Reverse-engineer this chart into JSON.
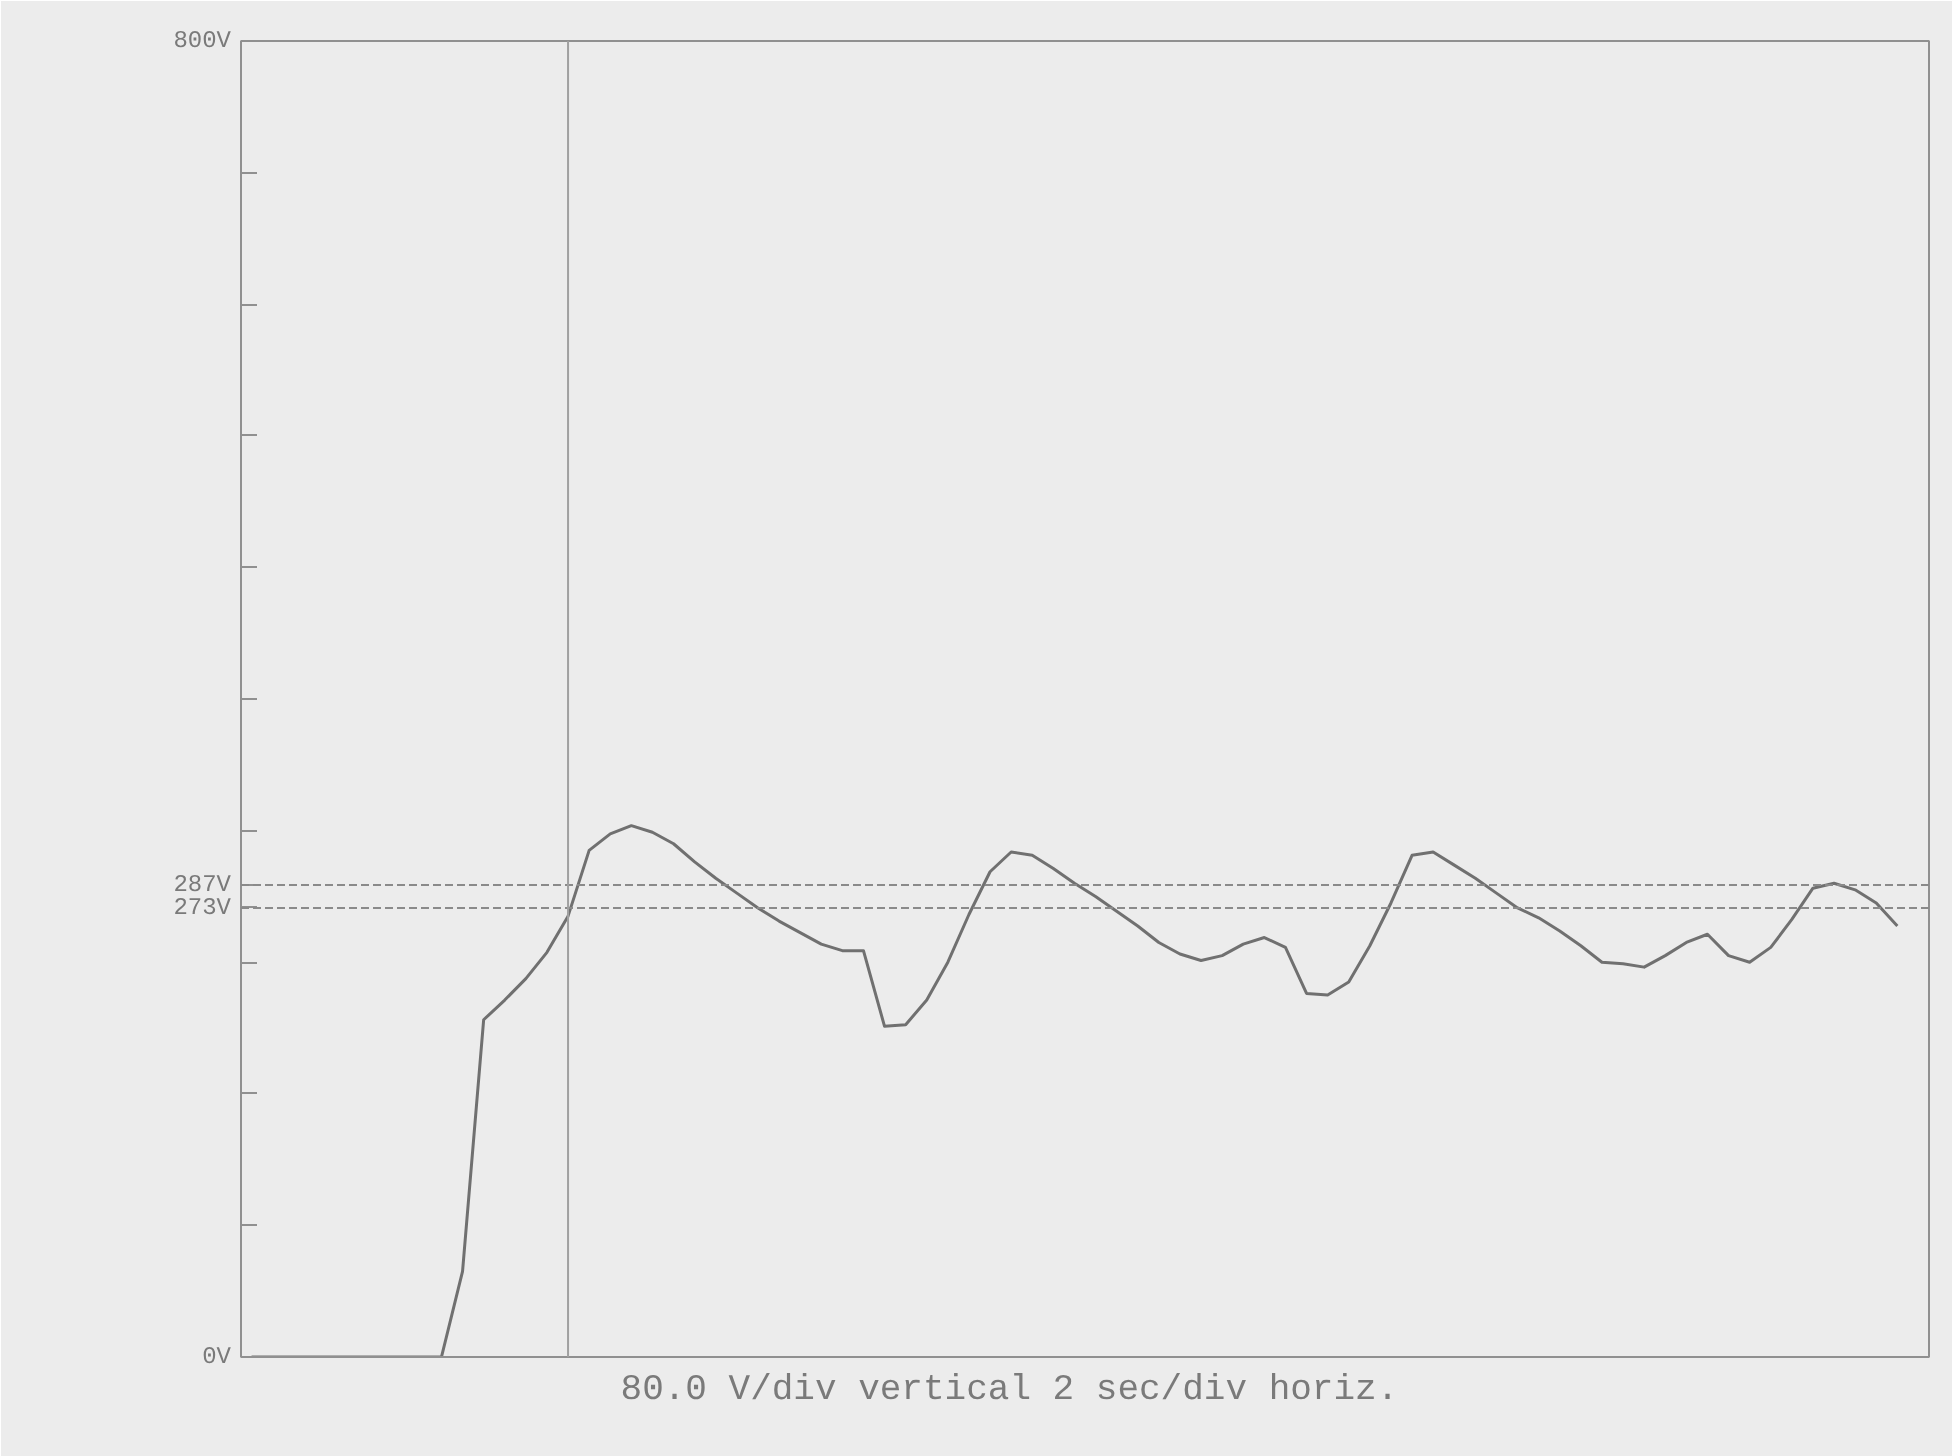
{
  "chart_data": {
    "type": "line",
    "categories": [
      null,
      null,
      null,
      null,
      null,
      null,
      null,
      null,
      null,
      null,
      null,
      null,
      null,
      null,
      null,
      null,
      null,
      null,
      null,
      null,
      null,
      null,
      null,
      null,
      null,
      null,
      null,
      null,
      null,
      null,
      null,
      null,
      null,
      null,
      null,
      null,
      null,
      null,
      null,
      null,
      null,
      null,
      null,
      null,
      null,
      null,
      null,
      null,
      null,
      null,
      null,
      null,
      null,
      null,
      null,
      null,
      null,
      null,
      null,
      null,
      null,
      null,
      null,
      null,
      null,
      null,
      null,
      null,
      null,
      null,
      null,
      null,
      null,
      null,
      null,
      null,
      null,
      null,
      null,
      null
    ],
    "series": [
      {
        "color": "#707070",
        "values": [
          0,
          0,
          0,
          0,
          0,
          0,
          0,
          0,
          0,
          0,
          52,
          205,
          217,
          230,
          246,
          268,
          308,
          318,
          323,
          319,
          312,
          301,
          291,
          282,
          273,
          265,
          258,
          251,
          247,
          247,
          201,
          202,
          217,
          240,
          269,
          295,
          307,
          305,
          297,
          288,
          280,
          271,
          262,
          252,
          245,
          241,
          244,
          251,
          255,
          249,
          221,
          220,
          228,
          250,
          276,
          305,
          307,
          299,
          291,
          282,
          273,
          267,
          259,
          250,
          240,
          239,
          237,
          244,
          252,
          257,
          244,
          240,
          249,
          266,
          285,
          288,
          284,
          276,
          262,
          null
        ]
      }
    ],
    "ylim": [
      0,
      800
    ],
    "yticks": [
      {
        "value": 0,
        "label": "0V"
      },
      {
        "value": 80,
        "label": null
      },
      {
        "value": 160,
        "label": null
      },
      {
        "value": 240,
        "label": null
      },
      {
        "value": 273,
        "label": "273V"
      },
      {
        "value": 287,
        "label": "287V"
      },
      {
        "value": 320,
        "label": null
      },
      {
        "value": 400,
        "label": null
      },
      {
        "value": 480,
        "label": null
      },
      {
        "value": 560,
        "label": null
      },
      {
        "value": 640,
        "label": null
      },
      {
        "value": 720,
        "label": null
      },
      {
        "value": 800,
        "label": "800V"
      }
    ],
    "tick_labels": "y",
    "ref_lines": [
      {
        "axis": "y",
        "value": 287,
        "color": "#8a8a8a",
        "line_style": "dashed"
      },
      {
        "axis": "y",
        "value": 273,
        "color": "#8a8a8a",
        "line_style": "dashed"
      }
    ],
    "annotations": [
      "80.0  V/div  vertical    2  sec/div  horiz."
    ],
    "grid": false,
    "marker": "none",
    "line_style": "solid"
  }
}
